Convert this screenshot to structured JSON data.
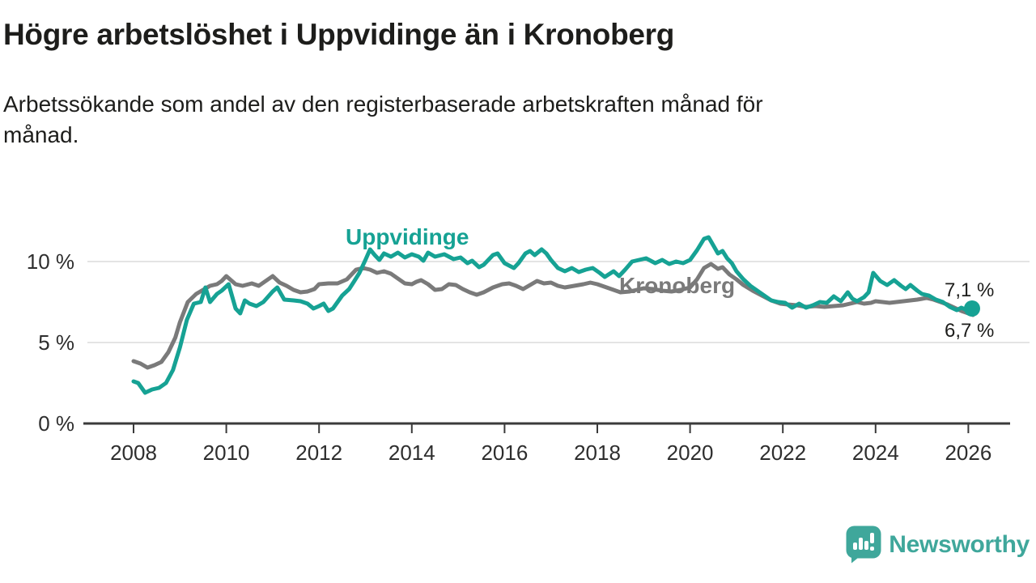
{
  "header": {
    "title": "Högre arbetslöshet i Uppvidinge än i Kronoberg",
    "subtitle": "Arbetssökande som andel av den registerbaserade arbetskraften månad för månad."
  },
  "branding": {
    "logo_text": "Newsworthy",
    "logo_color": "#3FA79B"
  },
  "chart_data": {
    "type": "line",
    "grid": "horizontal-only",
    "colors": {
      "grid": "#DCDCDC",
      "axis": "#3A3A3A",
      "tick_text": "#2E2E2E"
    },
    "x_axis": {
      "range": [
        2006.9,
        2027.0
      ],
      "ticks": [
        2008,
        2010,
        2012,
        2014,
        2016,
        2018,
        2020,
        2022,
        2024,
        2026
      ]
    },
    "y_axis": {
      "range": [
        0,
        12
      ],
      "unit": "%",
      "ticks": [
        {
          "value": 0,
          "label": "0 %"
        },
        {
          "value": 5,
          "label": "5 %"
        },
        {
          "value": 10,
          "label": "10 %"
        }
      ]
    },
    "series": [
      {
        "name": "Kronoberg",
        "color": "#7A7A7A",
        "end_value": 6.7,
        "end_label": "6,7 %",
        "points": [
          [
            2008.0,
            3.85
          ],
          [
            2008.15,
            3.7
          ],
          [
            2008.3,
            3.45
          ],
          [
            2008.45,
            3.6
          ],
          [
            2008.6,
            3.8
          ],
          [
            2008.75,
            4.4
          ],
          [
            2008.9,
            5.3
          ],
          [
            2009.0,
            6.25
          ],
          [
            2009.17,
            7.5
          ],
          [
            2009.35,
            8.0
          ],
          [
            2009.5,
            8.25
          ],
          [
            2009.65,
            8.5
          ],
          [
            2009.8,
            8.6
          ],
          [
            2009.9,
            8.8
          ],
          [
            2010.0,
            9.1
          ],
          [
            2010.2,
            8.6
          ],
          [
            2010.35,
            8.5
          ],
          [
            2010.55,
            8.65
          ],
          [
            2010.7,
            8.5
          ],
          [
            2010.85,
            8.8
          ],
          [
            2011.0,
            9.1
          ],
          [
            2011.15,
            8.7
          ],
          [
            2011.3,
            8.5
          ],
          [
            2011.45,
            8.25
          ],
          [
            2011.6,
            8.1
          ],
          [
            2011.75,
            8.15
          ],
          [
            2011.9,
            8.3
          ],
          [
            2012.0,
            8.6
          ],
          [
            2012.2,
            8.65
          ],
          [
            2012.4,
            8.65
          ],
          [
            2012.6,
            8.9
          ],
          [
            2012.8,
            9.5
          ],
          [
            2012.95,
            9.6
          ],
          [
            2013.1,
            9.5
          ],
          [
            2013.25,
            9.3
          ],
          [
            2013.4,
            9.4
          ],
          [
            2013.55,
            9.25
          ],
          [
            2013.7,
            8.95
          ],
          [
            2013.85,
            8.65
          ],
          [
            2014.0,
            8.6
          ],
          [
            2014.1,
            8.75
          ],
          [
            2014.2,
            8.85
          ],
          [
            2014.35,
            8.6
          ],
          [
            2014.5,
            8.25
          ],
          [
            2014.65,
            8.3
          ],
          [
            2014.8,
            8.6
          ],
          [
            2014.95,
            8.55
          ],
          [
            2015.1,
            8.3
          ],
          [
            2015.25,
            8.1
          ],
          [
            2015.4,
            7.95
          ],
          [
            2015.55,
            8.1
          ],
          [
            2015.75,
            8.4
          ],
          [
            2015.95,
            8.6
          ],
          [
            2016.1,
            8.65
          ],
          [
            2016.25,
            8.5
          ],
          [
            2016.4,
            8.3
          ],
          [
            2016.55,
            8.55
          ],
          [
            2016.7,
            8.8
          ],
          [
            2016.85,
            8.65
          ],
          [
            2017.0,
            8.7
          ],
          [
            2017.15,
            8.5
          ],
          [
            2017.3,
            8.4
          ],
          [
            2017.5,
            8.5
          ],
          [
            2017.7,
            8.6
          ],
          [
            2017.85,
            8.7
          ],
          [
            2018.0,
            8.6
          ],
          [
            2018.2,
            8.4
          ],
          [
            2018.35,
            8.25
          ],
          [
            2018.5,
            8.1
          ],
          [
            2018.7,
            8.15
          ],
          [
            2018.85,
            8.25
          ],
          [
            2019.0,
            8.35
          ],
          [
            2019.2,
            8.3
          ],
          [
            2019.4,
            8.2
          ],
          [
            2019.6,
            8.15
          ],
          [
            2019.8,
            8.25
          ],
          [
            2020.0,
            8.4
          ],
          [
            2020.15,
            8.9
          ],
          [
            2020.3,
            9.6
          ],
          [
            2020.45,
            9.85
          ],
          [
            2020.6,
            9.55
          ],
          [
            2020.7,
            9.65
          ],
          [
            2020.85,
            9.2
          ],
          [
            2021.0,
            8.9
          ],
          [
            2021.15,
            8.55
          ],
          [
            2021.35,
            8.2
          ],
          [
            2021.55,
            7.9
          ],
          [
            2021.75,
            7.6
          ],
          [
            2021.95,
            7.4
          ],
          [
            2022.1,
            7.35
          ],
          [
            2022.3,
            7.3
          ],
          [
            2022.5,
            7.2
          ],
          [
            2022.7,
            7.25
          ],
          [
            2022.9,
            7.2
          ],
          [
            2023.1,
            7.25
          ],
          [
            2023.3,
            7.3
          ],
          [
            2023.45,
            7.4
          ],
          [
            2023.6,
            7.5
          ],
          [
            2023.75,
            7.4
          ],
          [
            2023.9,
            7.45
          ],
          [
            2024.0,
            7.55
          ],
          [
            2024.15,
            7.5
          ],
          [
            2024.3,
            7.45
          ],
          [
            2024.45,
            7.5
          ],
          [
            2024.6,
            7.55
          ],
          [
            2024.75,
            7.6
          ],
          [
            2024.9,
            7.65
          ],
          [
            2025.0,
            7.7
          ],
          [
            2025.1,
            7.75
          ],
          [
            2025.25,
            7.65
          ],
          [
            2025.4,
            7.5
          ],
          [
            2025.55,
            7.35
          ],
          [
            2025.7,
            7.15
          ],
          [
            2025.85,
            6.95
          ],
          [
            2026.0,
            6.8
          ],
          [
            2026.1,
            6.7
          ]
        ]
      },
      {
        "name": "Uppvidinge",
        "color": "#16A294",
        "end_value": 7.1,
        "end_label": "7,1 %",
        "end_dot": true,
        "points": [
          [
            2008.0,
            2.6
          ],
          [
            2008.1,
            2.5
          ],
          [
            2008.25,
            1.9
          ],
          [
            2008.4,
            2.1
          ],
          [
            2008.55,
            2.2
          ],
          [
            2008.7,
            2.5
          ],
          [
            2008.85,
            3.3
          ],
          [
            2009.0,
            4.7
          ],
          [
            2009.15,
            6.4
          ],
          [
            2009.3,
            7.4
          ],
          [
            2009.45,
            7.5
          ],
          [
            2009.55,
            8.4
          ],
          [
            2009.65,
            7.5
          ],
          [
            2009.8,
            8.0
          ],
          [
            2009.9,
            8.2
          ],
          [
            2010.05,
            8.6
          ],
          [
            2010.2,
            7.1
          ],
          [
            2010.3,
            6.8
          ],
          [
            2010.4,
            7.6
          ],
          [
            2010.5,
            7.4
          ],
          [
            2010.65,
            7.25
          ],
          [
            2010.8,
            7.5
          ],
          [
            2011.0,
            8.15
          ],
          [
            2011.1,
            8.4
          ],
          [
            2011.25,
            7.65
          ],
          [
            2011.45,
            7.6
          ],
          [
            2011.6,
            7.55
          ],
          [
            2011.75,
            7.4
          ],
          [
            2011.88,
            7.1
          ],
          [
            2012.0,
            7.25
          ],
          [
            2012.1,
            7.4
          ],
          [
            2012.2,
            6.95
          ],
          [
            2012.3,
            7.1
          ],
          [
            2012.5,
            7.9
          ],
          [
            2012.65,
            8.3
          ],
          [
            2012.75,
            8.75
          ],
          [
            2012.87,
            9.3
          ],
          [
            2013.0,
            10.1
          ],
          [
            2013.1,
            10.75
          ],
          [
            2013.2,
            10.4
          ],
          [
            2013.3,
            10.1
          ],
          [
            2013.4,
            10.5
          ],
          [
            2013.55,
            10.3
          ],
          [
            2013.7,
            10.55
          ],
          [
            2013.85,
            10.25
          ],
          [
            2014.0,
            10.45
          ],
          [
            2014.15,
            10.3
          ],
          [
            2014.25,
            10.05
          ],
          [
            2014.35,
            10.55
          ],
          [
            2014.5,
            10.3
          ],
          [
            2014.7,
            10.45
          ],
          [
            2014.9,
            10.15
          ],
          [
            2015.05,
            10.25
          ],
          [
            2015.2,
            9.9
          ],
          [
            2015.3,
            10.05
          ],
          [
            2015.45,
            9.65
          ],
          [
            2015.55,
            9.8
          ],
          [
            2015.75,
            10.4
          ],
          [
            2015.85,
            10.5
          ],
          [
            2016.0,
            9.9
          ],
          [
            2016.1,
            9.75
          ],
          [
            2016.2,
            9.6
          ],
          [
            2016.3,
            9.9
          ],
          [
            2016.45,
            10.5
          ],
          [
            2016.55,
            10.65
          ],
          [
            2016.65,
            10.4
          ],
          [
            2016.8,
            10.75
          ],
          [
            2016.9,
            10.5
          ],
          [
            2017.0,
            10.1
          ],
          [
            2017.15,
            9.6
          ],
          [
            2017.3,
            9.4
          ],
          [
            2017.45,
            9.6
          ],
          [
            2017.6,
            9.35
          ],
          [
            2017.75,
            9.5
          ],
          [
            2017.9,
            9.6
          ],
          [
            2018.05,
            9.3
          ],
          [
            2018.16,
            9.05
          ],
          [
            2018.35,
            9.4
          ],
          [
            2018.47,
            9.1
          ],
          [
            2018.6,
            9.5
          ],
          [
            2018.75,
            10.0
          ],
          [
            2018.9,
            10.1
          ],
          [
            2019.05,
            10.2
          ],
          [
            2019.25,
            9.9
          ],
          [
            2019.4,
            10.1
          ],
          [
            2019.55,
            9.85
          ],
          [
            2019.7,
            10.0
          ],
          [
            2019.85,
            9.9
          ],
          [
            2020.0,
            10.1
          ],
          [
            2020.15,
            10.7
          ],
          [
            2020.3,
            11.4
          ],
          [
            2020.4,
            11.5
          ],
          [
            2020.5,
            11.0
          ],
          [
            2020.6,
            10.5
          ],
          [
            2020.7,
            10.65
          ],
          [
            2020.8,
            10.2
          ],
          [
            2020.9,
            9.9
          ],
          [
            2021.0,
            9.4
          ],
          [
            2021.15,
            8.9
          ],
          [
            2021.3,
            8.5
          ],
          [
            2021.45,
            8.2
          ],
          [
            2021.6,
            7.9
          ],
          [
            2021.75,
            7.6
          ],
          [
            2021.9,
            7.5
          ],
          [
            2022.05,
            7.45
          ],
          [
            2022.2,
            7.15
          ],
          [
            2022.35,
            7.4
          ],
          [
            2022.5,
            7.15
          ],
          [
            2022.65,
            7.3
          ],
          [
            2022.8,
            7.5
          ],
          [
            2022.95,
            7.45
          ],
          [
            2023.1,
            7.85
          ],
          [
            2023.25,
            7.55
          ],
          [
            2023.4,
            8.1
          ],
          [
            2023.5,
            7.7
          ],
          [
            2023.6,
            7.55
          ],
          [
            2023.75,
            7.8
          ],
          [
            2023.85,
            8.1
          ],
          [
            2023.95,
            9.3
          ],
          [
            2024.1,
            8.8
          ],
          [
            2024.25,
            8.55
          ],
          [
            2024.4,
            8.85
          ],
          [
            2024.55,
            8.5
          ],
          [
            2024.65,
            8.3
          ],
          [
            2024.75,
            8.55
          ],
          [
            2024.9,
            8.2
          ],
          [
            2025.0,
            8.0
          ],
          [
            2025.15,
            7.9
          ],
          [
            2025.3,
            7.65
          ],
          [
            2025.45,
            7.5
          ],
          [
            2025.6,
            7.2
          ],
          [
            2025.75,
            7.0
          ],
          [
            2025.85,
            7.15
          ],
          [
            2026.0,
            6.95
          ],
          [
            2026.08,
            7.1
          ]
        ]
      }
    ]
  }
}
